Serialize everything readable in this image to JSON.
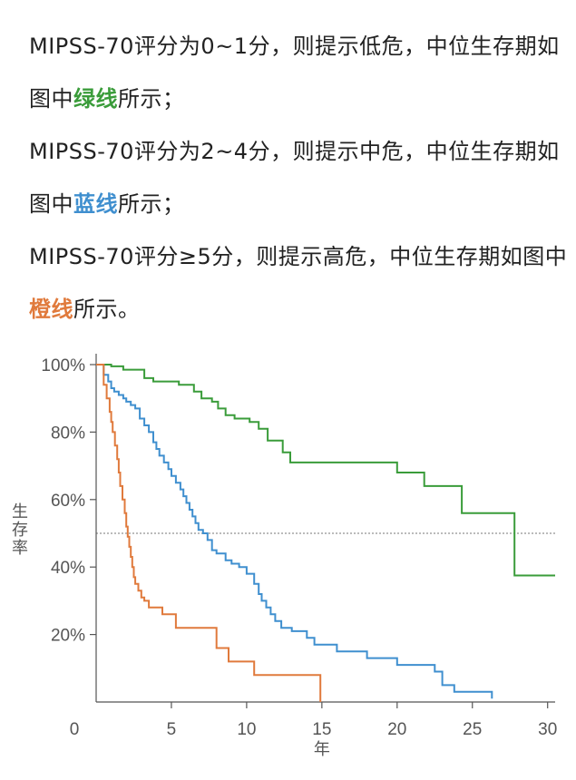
{
  "paragraphs": [
    {
      "before": "MIPSS-70评分为0~1分，则提示低危，中位生存期如图中",
      "highlight": "绿线",
      "after": "所示；"
    },
    {
      "before": "MIPSS-70评分为2~4分，则提示中危，中位生存期如图中",
      "highlight": "蓝线",
      "after": "所示；"
    },
    {
      "before": "MIPSS-70评分≥5分，则提示高危，中位生存期如图中",
      "highlight": "橙线",
      "after": "所示。"
    }
  ],
  "colors": {
    "low": "#3a9c3a",
    "mid": "#3f8fcf",
    "high": "#e07a3c",
    "text": "#222222",
    "axis": "#555555"
  },
  "chart_data": {
    "type": "line",
    "step": true,
    "ylabel": "生存率",
    "xlabel": "年",
    "xlim": [
      0,
      30.5
    ],
    "ylim": [
      0,
      100
    ],
    "x_ticks": [
      "0",
      "5",
      "10",
      "15",
      "20",
      "25",
      "30"
    ],
    "y_ticks": [
      "20%",
      "40%",
      "60%",
      "80%",
      "100%"
    ],
    "reference_line": {
      "y": 50,
      "style": "dotted"
    },
    "series": [
      {
        "color": "#3a9c3a",
        "x": [
          0,
          1,
          1.8,
          3.2,
          3.8,
          5.5,
          6.5,
          7.0,
          7.7,
          8.1,
          8.6,
          9.2,
          10.2,
          10.8,
          11.4,
          12.4,
          12.9,
          20.0,
          21.8,
          24.3,
          27.8,
          30.5
        ],
        "y": [
          100,
          99.5,
          98.5,
          96,
          95,
          94,
          92,
          90,
          89,
          87,
          85,
          84,
          83,
          81,
          77.5,
          74,
          71,
          68,
          64,
          56,
          37.5,
          37.5
        ]
      },
      {
        "color": "#3f8fcf",
        "x": [
          0,
          0.5,
          0.8,
          1.0,
          1.2,
          1.5,
          1.8,
          2.0,
          2.3,
          2.6,
          2.9,
          3.2,
          3.5,
          3.8,
          4.0,
          4.2,
          4.5,
          4.8,
          5.0,
          5.3,
          5.6,
          5.8,
          6.0,
          6.2,
          6.4,
          6.6,
          6.8,
          7.1,
          7.4,
          7.7,
          8.0,
          8.6,
          9.0,
          9.5,
          10.0,
          10.5,
          10.8,
          11.0,
          11.3,
          11.6,
          11.9,
          12.3,
          13.0,
          14.0,
          14.5,
          16.0,
          18.0,
          20.0,
          22.5,
          23.0,
          23.8,
          26.3
        ],
        "y": [
          100,
          97,
          95,
          93,
          92,
          91,
          90,
          89,
          88,
          87,
          84,
          82,
          80,
          77,
          75,
          73,
          71,
          69,
          67,
          65,
          63,
          61,
          59,
          57,
          55,
          53,
          51,
          50,
          48,
          45,
          44,
          42,
          41,
          40,
          38,
          35,
          32,
          30,
          28,
          26,
          24,
          22,
          21,
          19,
          17,
          15,
          13,
          11,
          9,
          5,
          3,
          1
        ]
      },
      {
        "color": "#e07a3c",
        "x": [
          0,
          0.5,
          0.7,
          0.9,
          1.0,
          1.1,
          1.25,
          1.4,
          1.5,
          1.6,
          1.75,
          1.9,
          2.0,
          2.1,
          2.2,
          2.3,
          2.4,
          2.5,
          2.6,
          2.8,
          3.0,
          3.2,
          3.5,
          4.4,
          5.3,
          8.0,
          8.8,
          10.5,
          14.9
        ],
        "y": [
          100,
          94,
          90,
          86,
          83,
          80,
          76,
          72,
          68,
          64,
          60,
          56,
          52,
          49,
          46,
          43,
          40,
          37,
          35,
          33,
          31,
          30,
          28,
          26,
          22,
          16,
          12,
          8,
          0
        ]
      }
    ]
  }
}
